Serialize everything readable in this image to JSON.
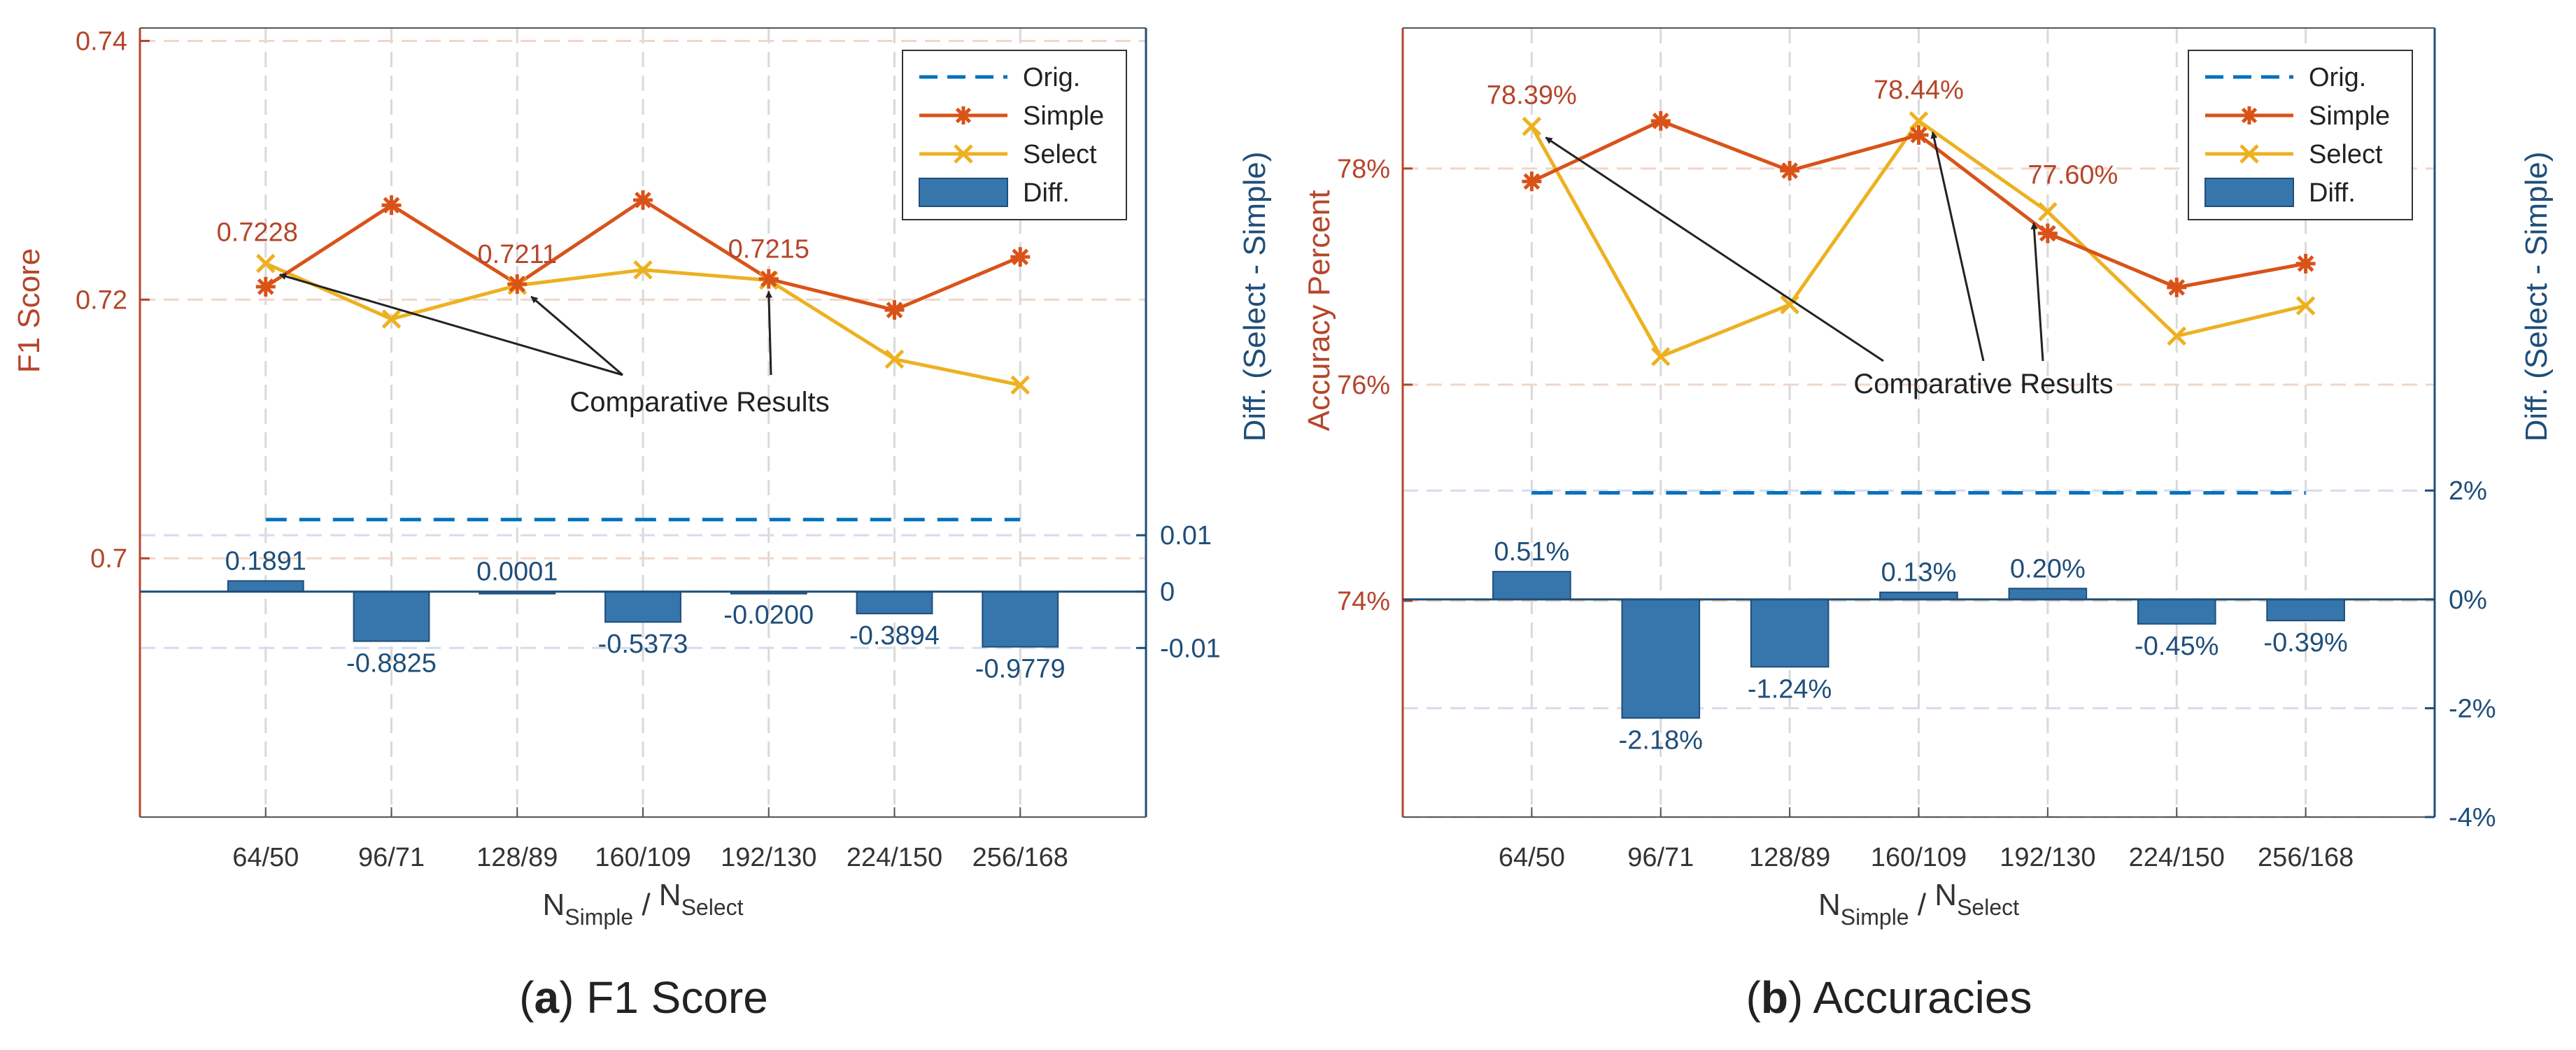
{
  "chart_data": [
    {
      "panel": "a",
      "caption_letter": "a",
      "caption_text": "F1 Score",
      "type": "line+bar",
      "categories": [
        "64/50",
        "96/71",
        "128/89",
        "160/109",
        "192/130",
        "224/150",
        "256/168"
      ],
      "xlabel": {
        "base1": "N",
        "sub1": "Simple",
        "sep": " / ",
        "base2": "N",
        "sub2": "Select"
      },
      "ylabel_left": "F1 Score",
      "ylabel_right": "Diff. (Select - Simple)",
      "ylim_left": [
        0.68,
        0.741
      ],
      "ylim_right": [
        -0.04,
        0.1
      ],
      "yticks_left": [
        0.7,
        0.72,
        0.74
      ],
      "ytick_labels_left": [
        "0.7",
        "0.72",
        "0.74"
      ],
      "yticks_right": [
        -0.01,
        0,
        0.01
      ],
      "ytick_labels_right": [
        "-0.01",
        "0",
        "0.01"
      ],
      "grid": true,
      "legend": {
        "placement": "top-right",
        "entries": [
          {
            "key": "orig",
            "label": "Orig.",
            "style": "dashed-line"
          },
          {
            "key": "simple",
            "label": "Simple",
            "style": "line-asterisk"
          },
          {
            "key": "select",
            "label": "Select",
            "style": "line-x"
          },
          {
            "key": "diff",
            "label": "Diff.",
            "style": "bar"
          }
        ]
      },
      "series": [
        {
          "key": "orig",
          "name": "Orig.",
          "axis": "left",
          "values": [
            0.703,
            0.703,
            0.703,
            0.703,
            0.703,
            0.703,
            0.703
          ]
        },
        {
          "key": "simple",
          "name": "Simple",
          "axis": "left",
          "values": [
            0.721,
            0.7273,
            0.7212,
            0.7277,
            0.7216,
            0.7192,
            0.7233
          ]
        },
        {
          "key": "select",
          "name": "Select",
          "axis": "left",
          "values": [
            0.7228,
            0.7185,
            0.7211,
            0.7223,
            0.7215,
            0.7154,
            0.7134
          ]
        },
        {
          "key": "diff",
          "name": "Diff.",
          "axis": "right",
          "type": "bar",
          "values": [
            0.0019,
            -0.0088,
            0.0,
            -0.0054,
            -0.0002,
            -0.0039,
            -0.0098
          ]
        }
      ],
      "bar_labels": [
        "0.1891",
        "-0.8825",
        "0.0001",
        "-0.5373",
        "-0.0200",
        "-0.3894",
        "-0.9779"
      ],
      "annotations": {
        "text": "Comparative Results",
        "point_labels": [
          {
            "index": 0,
            "label": "0.7228"
          },
          {
            "index": 2,
            "label": "0.7211"
          },
          {
            "index": 4,
            "label": "0.7215"
          }
        ]
      }
    },
    {
      "panel": "b",
      "caption_letter": "b",
      "caption_text": "Accuracies",
      "type": "line+bar",
      "categories": [
        "64/50",
        "96/71",
        "128/89",
        "160/109",
        "192/130",
        "224/150",
        "256/168"
      ],
      "xlabel": {
        "base1": "N",
        "sub1": "Simple",
        "sep": " / ",
        "base2": "N",
        "sub2": "Select"
      },
      "ylabel_left": "Accuracy Percent",
      "ylabel_right": "Diff. (Select - Simple)",
      "ylim_left": [
        72.0,
        79.3
      ],
      "ylim_right": [
        -4,
        10.5
      ],
      "yticks_left": [
        74,
        76,
        78
      ],
      "ytick_labels_left": [
        "74%",
        "76%",
        "78%"
      ],
      "yticks_right": [
        -4,
        -2,
        0,
        2
      ],
      "ytick_labels_right": [
        "-4%",
        "-2%",
        "0%",
        "2%"
      ],
      "grid": true,
      "legend": {
        "placement": "top-right",
        "entries": [
          {
            "key": "orig",
            "label": "Orig.",
            "style": "dashed-line"
          },
          {
            "key": "simple",
            "label": "Simple",
            "style": "line-asterisk"
          },
          {
            "key": "select",
            "label": "Select",
            "style": "line-x"
          },
          {
            "key": "diff",
            "label": "Diff.",
            "style": "bar"
          }
        ]
      },
      "series": [
        {
          "key": "orig",
          "name": "Orig.",
          "axis": "left",
          "values": [
            75.0,
            75.0,
            75.0,
            75.0,
            75.0,
            75.0,
            75.0
          ]
        },
        {
          "key": "simple",
          "name": "Simple",
          "axis": "left",
          "values": [
            77.88,
            78.44,
            77.98,
            78.31,
            77.4,
            76.9,
            77.12
          ]
        },
        {
          "key": "select",
          "name": "Select",
          "axis": "left",
          "values": [
            78.39,
            76.26,
            76.74,
            78.44,
            77.6,
            76.45,
            76.73
          ]
        },
        {
          "key": "diff",
          "name": "Diff.",
          "axis": "right",
          "type": "bar",
          "values": [
            0.51,
            -2.18,
            -1.24,
            0.13,
            0.2,
            -0.45,
            -0.39
          ]
        }
      ],
      "bar_labels": [
        "0.51%",
        "-2.18%",
        "-1.24%",
        "0.13%",
        "0.20%",
        "-0.45%",
        "-0.39%"
      ],
      "annotations": {
        "text": "Comparative Results",
        "point_labels": [
          {
            "index": 0,
            "label": "78.39%"
          },
          {
            "index": 3,
            "label": "78.44%"
          },
          {
            "index": 4,
            "label": "77.60%"
          }
        ]
      }
    }
  ]
}
